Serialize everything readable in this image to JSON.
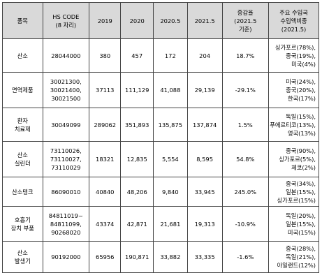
{
  "headers": {
    "item": "품목",
    "hs_code": [
      "HS CODE",
      "(8 자리)"
    ],
    "y2019": "2019",
    "y2020": "2020",
    "y2020_5": "2020.5",
    "y2021_5": "2021.5",
    "increase": [
      "증감율",
      "(2021.5",
      "기준)"
    ],
    "share": [
      "주요 수입국",
      "수입액비중",
      "(2021.5)"
    ]
  },
  "rows": [
    {
      "item": [
        "산소"
      ],
      "hs": [
        "28044000"
      ],
      "y2019": "380",
      "y2020": "457",
      "y2020_5": "172",
      "y2021_5": "204",
      "inc": "18.7%",
      "share": [
        "싱가포르(78%),",
        "중국(19%),",
        "미국(4%)"
      ]
    },
    {
      "item": [
        "면역제품"
      ],
      "hs": [
        "30021300,",
        "30021400,",
        "30021500"
      ],
      "y2019": "37113",
      "y2020": "111,129",
      "y2020_5": "41,088",
      "y2021_5": "29,139",
      "inc": "-29.1%",
      "share": [
        "미국(24%),",
        "중국(20%),",
        "한국(17%)"
      ]
    },
    {
      "item": [
        "환자",
        "치료제"
      ],
      "hs": [
        "30049099"
      ],
      "y2019": "289062",
      "y2020": "351,893",
      "y2020_5": "135,875",
      "y2021_5": "137,874",
      "inc": "1.5%",
      "share": [
        "독일(15%),",
        "푸에르티코(13%),",
        "영국(13%)"
      ]
    },
    {
      "item": [
        "산소",
        "실린더"
      ],
      "hs": [
        "73110026,",
        "73110027,",
        "73110029"
      ],
      "y2019": "18321",
      "y2020": "12,835",
      "y2020_5": "5,554",
      "y2021_5": "8,595",
      "inc": "54.8%",
      "share": [
        "중국(90%),",
        "싱가포르(5%),",
        "체코(2%)"
      ]
    },
    {
      "item": [
        "산소탱크"
      ],
      "hs": [
        "86090010"
      ],
      "y2019": "40840",
      "y2020": "48,206",
      "y2020_5": "9,840",
      "y2021_5": "33,945",
      "inc": "245.0%",
      "share": [
        "중국(34%),",
        "일본(15%),",
        "싱가포르(15%)"
      ]
    },
    {
      "item": [
        "호흡기",
        "장치 부품"
      ],
      "hs": [
        "84811019~",
        "84811099,",
        "90268020"
      ],
      "y2019": "43374",
      "y2020": "42,871",
      "y2020_5": "21,681",
      "y2021_5": "19,313",
      "inc": "-10.9%",
      "share": [
        "독일(20%),",
        "일본(15%),",
        "미국(15%)"
      ]
    },
    {
      "item": [
        "산소",
        "발생기"
      ],
      "hs": [
        "90192000"
      ],
      "y2019": "65956",
      "y2020": "190,871",
      "y2020_5": "33,882",
      "y2021_5": "33,335",
      "inc": "-1.6%",
      "share": [
        "중국(28%),",
        "독일(21%),",
        "아일랜드(12%)"
      ]
    }
  ]
}
